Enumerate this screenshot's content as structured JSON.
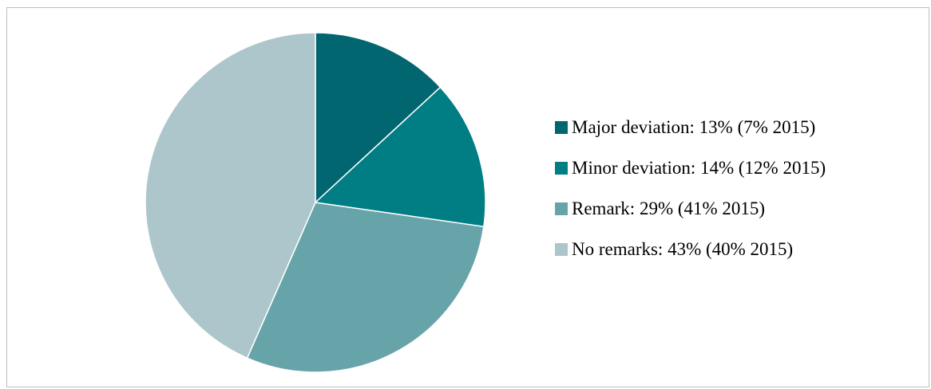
{
  "chart_data": {
    "type": "pie",
    "title": "",
    "start_angle_deg": 0,
    "direction": "clockwise",
    "legend_position": "right",
    "slices": [
      {
        "label": "Major deviation: 13% (7% 2015)",
        "value": 13,
        "color": "#026670"
      },
      {
        "label": "Minor deviation: 14% (12% 2015)",
        "value": 14,
        "color": "#007E84"
      },
      {
        "label": "Remark: 29% (41% 2015)",
        "value": 29,
        "color": "#67A4AA"
      },
      {
        "label": "No remarks: 43% (40% 2015)",
        "value": 43,
        "color": "#ADC6CB"
      }
    ]
  }
}
